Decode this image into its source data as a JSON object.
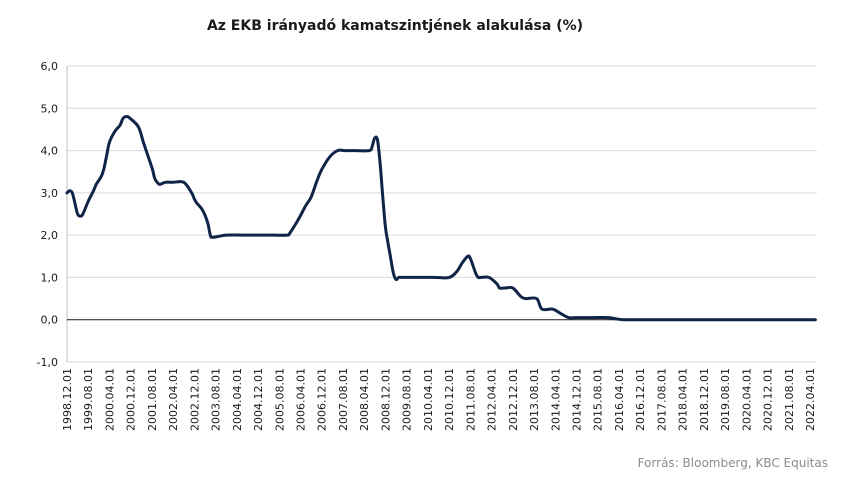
{
  "chart_data": {
    "type": "line",
    "title": "Az EKB irányadó kamatszintjének alakulása (%)",
    "xlabel": "",
    "ylabel": "",
    "ylim": [
      -1,
      6
    ],
    "y_ticks": [
      "-1,0",
      "0,0",
      "1,0",
      "2,0",
      "3,0",
      "4,0",
      "5,0",
      "6,0"
    ],
    "x_ticks": [
      "1998.12.01",
      "1999.08.01",
      "2000.04.01",
      "2000.12.01",
      "2001.08.01",
      "2002.04.01",
      "2002.12.01",
      "2003.08.01",
      "2004.04.01",
      "2004.12.01",
      "2005.08.01",
      "2006.04.01",
      "2006.12.01",
      "2007.08.01",
      "2008.04.01",
      "2008.12.01",
      "2009.08.01",
      "2010.04.01",
      "2010.12.01",
      "2011.08.01",
      "2012.04.01",
      "2012.12.01",
      "2013.08.01",
      "2014.04.01",
      "2014.12.01",
      "2015.08.01",
      "2016.04.01",
      "2016.12.01",
      "2017.08.01",
      "2018.04.01",
      "2018.12.01",
      "2019.08.01",
      "2020.04.01",
      "2020.12.01",
      "2021.08.01",
      "2022.04.01"
    ],
    "grid": true,
    "line_color": "#0f2447",
    "series": [
      {
        "x": [
          "1998.12",
          "1999.01",
          "1999.02",
          "1999.03",
          "1999.04",
          "1999.05",
          "1999.06",
          "1999.08",
          "1999.10",
          "1999.11",
          "2000.01",
          "2000.02",
          "2000.03",
          "2000.04",
          "2000.06",
          "2000.08",
          "2000.09",
          "2000.10",
          "2000.11",
          "2000.12",
          "2001.03",
          "2001.05",
          "2001.08",
          "2001.09",
          "2001.10",
          "2001.11",
          "2002.01",
          "2002.04",
          "2002.08",
          "2002.11",
          "2002.12",
          "2003.01",
          "2003.03",
          "2003.05",
          "2003.06",
          "2003.07",
          "2003.12",
          "2004.06",
          "2004.12",
          "2005.06",
          "2005.11",
          "2005.12",
          "2006.03",
          "2006.06",
          "2006.08",
          "2006.10",
          "2006.12",
          "2007.03",
          "2007.06",
          "2007.09",
          "2008.01",
          "2008.06",
          "2008.07",
          "2008.08",
          "2008.09",
          "2008.10",
          "2008.11",
          "2008.12",
          "2009.01",
          "2009.02",
          "2009.03",
          "2009.04",
          "2009.05",
          "2009.06",
          "2009.09",
          "2010.06",
          "2010.12",
          "2011.03",
          "2011.05",
          "2011.07",
          "2011.08",
          "2011.10",
          "2011.11",
          "2011.12",
          "2012.03",
          "2012.06",
          "2012.07",
          "2012.09",
          "2012.12",
          "2013.03",
          "2013.05",
          "2013.09",
          "2013.11",
          "2014.03",
          "2014.06",
          "2014.09",
          "2014.12",
          "2015.06",
          "2015.12",
          "2016.03",
          "2016.06",
          "2017.01",
          "2018.01",
          "2019.01",
          "2020.01",
          "2021.01",
          "2022.06"
        ],
        "values": [
          3.0,
          3.05,
          3.0,
          2.75,
          2.5,
          2.45,
          2.5,
          2.8,
          3.05,
          3.2,
          3.4,
          3.6,
          3.9,
          4.2,
          4.45,
          4.6,
          4.75,
          4.8,
          4.8,
          4.75,
          4.55,
          4.15,
          3.6,
          3.35,
          3.25,
          3.2,
          3.25,
          3.25,
          3.25,
          3.0,
          2.85,
          2.75,
          2.6,
          2.3,
          2.0,
          1.95,
          2.0,
          2.0,
          2.0,
          2.0,
          2.0,
          2.05,
          2.35,
          2.7,
          2.9,
          3.25,
          3.55,
          3.85,
          4.0,
          4.0,
          4.0,
          4.0,
          4.1,
          4.3,
          4.25,
          3.7,
          2.9,
          2.2,
          1.8,
          1.45,
          1.1,
          0.95,
          1.0,
          1.0,
          1.0,
          1.0,
          1.0,
          1.15,
          1.35,
          1.5,
          1.45,
          1.1,
          1.0,
          1.0,
          1.0,
          0.85,
          0.75,
          0.75,
          0.75,
          0.55,
          0.5,
          0.5,
          0.25,
          0.25,
          0.15,
          0.05,
          0.05,
          0.05,
          0.05,
          0.02,
          0.0,
          0.0,
          0.0,
          0.0,
          0.0,
          0.0,
          0.0
        ]
      }
    ]
  },
  "footer": {
    "source": "Forrás: Bloomberg,  KBC Equitas"
  }
}
